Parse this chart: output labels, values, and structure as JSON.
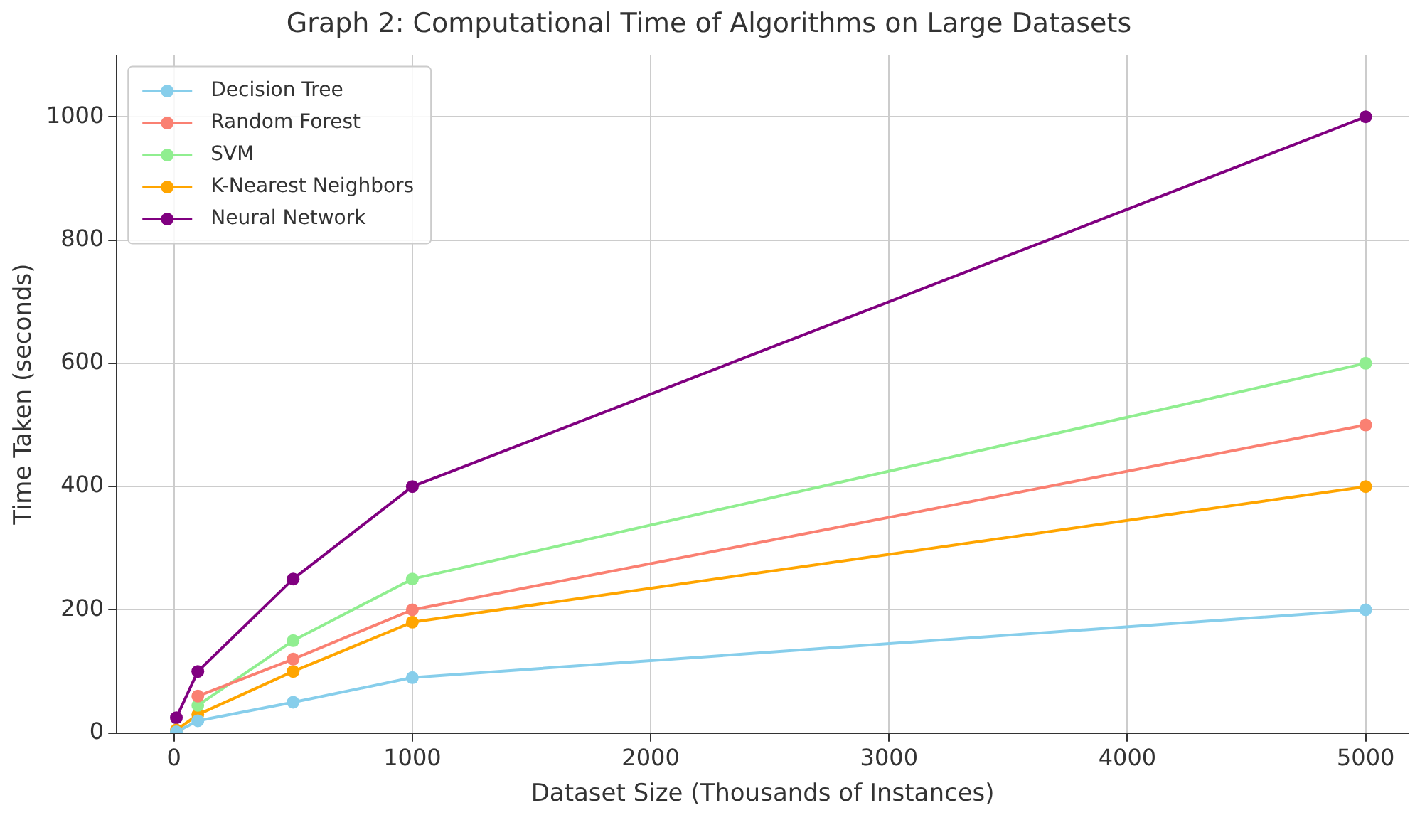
{
  "chart_data": {
    "type": "line",
    "title": "Graph 2: Computational Time of Algorithms on Large Datasets",
    "xlabel": "Dataset Size (Thousands of Instances)",
    "ylabel": "Time Taken (seconds)",
    "x": [
      10,
      100,
      500,
      1000,
      5000
    ],
    "series": [
      {
        "name": "Decision Tree",
        "color": "#87ceeb",
        "values": [
          2,
          20,
          50,
          90,
          200
        ]
      },
      {
        "name": "Random Forest",
        "color": "#fa8072",
        "values": [
          null,
          60,
          120,
          200,
          500
        ]
      },
      {
        "name": "SVM",
        "color": "#90ee90",
        "values": [
          null,
          45,
          150,
          250,
          600
        ]
      },
      {
        "name": "K-Nearest Neighbors",
        "color": "#ffa500",
        "values": [
          5,
          30,
          100,
          180,
          400
        ]
      },
      {
        "name": "Neural Network",
        "color": "#800080",
        "values": [
          25,
          100,
          250,
          400,
          1000
        ]
      }
    ],
    "xlim": [
      -240,
      5180
    ],
    "xticks": [
      0,
      1000,
      2000,
      3000,
      4000,
      5000
    ],
    "ylim": [
      0,
      1100
    ],
    "yticks": [
      0,
      200,
      400,
      600,
      800,
      1000
    ],
    "grid": true,
    "legend": "top left",
    "marker": "circle",
    "line_style": "solid"
  }
}
